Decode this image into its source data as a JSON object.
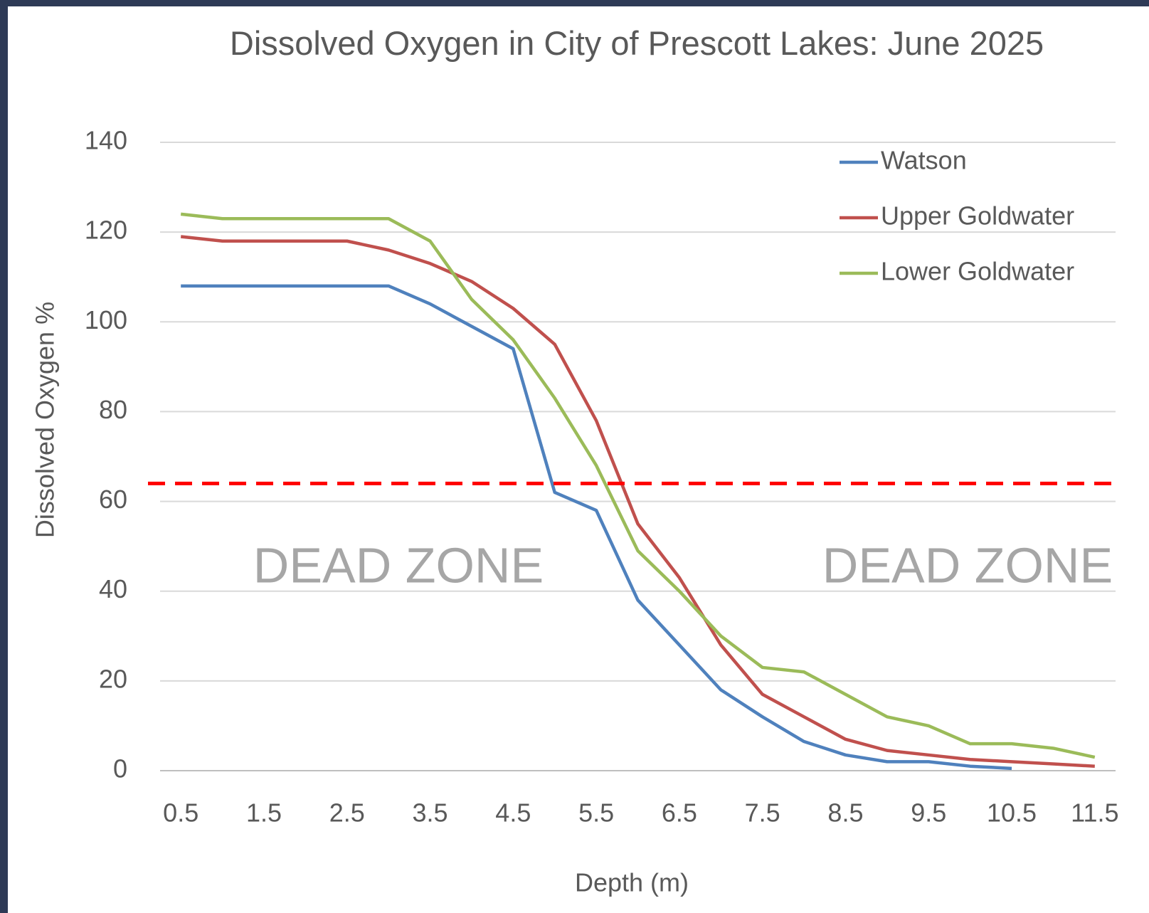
{
  "chart_data": {
    "type": "line",
    "title": "Dissolved Oxygen in City of Prescott Lakes: June 2025",
    "x_label": "Depth (m)",
    "y_label": "Dissolved Oxygen %",
    "x": [
      0.5,
      1,
      1.5,
      2,
      2.5,
      3,
      3.5,
      4,
      4.5,
      5,
      5.5,
      6,
      6.5,
      7,
      7.5,
      8,
      8.5,
      9,
      9.5,
      10,
      10.5,
      11,
      11.5
    ],
    "series": [
      {
        "name": "Watson",
        "color": "#4f81bd",
        "values": [
          108,
          108,
          108,
          108,
          108,
          108,
          104,
          99,
          94,
          62,
          58,
          38,
          28,
          18,
          12,
          6.5,
          3.5,
          2,
          2,
          1,
          0.5,
          null,
          null
        ]
      },
      {
        "name": "Upper Goldwater",
        "color": "#c0504d",
        "values": [
          119,
          118,
          118,
          118,
          118,
          116,
          113,
          109,
          103,
          95,
          78,
          55,
          43,
          28,
          17,
          12,
          7,
          4.5,
          3.5,
          2.5,
          2,
          1.5,
          1
        ]
      },
      {
        "name": "Lower Goldwater",
        "color": "#9bbb59",
        "values": [
          124,
          123,
          123,
          123,
          123,
          123,
          118,
          105,
          96,
          83,
          68,
          49,
          40,
          30,
          23,
          22,
          17,
          12,
          10,
          6,
          6,
          5,
          3
        ]
      }
    ],
    "threshold": {
      "value": 64,
      "color": "#ff0000"
    },
    "annotations": [
      "DEAD ZONE",
      "DEAD ZONE"
    ],
    "xlim": [
      0.25,
      11.75
    ],
    "xticks": [
      0.5,
      1.5,
      2.5,
      3.5,
      4.5,
      5.5,
      6.5,
      7.5,
      8.5,
      9.5,
      10.5,
      11.5
    ],
    "ylim": [
      0,
      140
    ],
    "yticks": [
      0,
      20,
      40,
      60,
      80,
      100,
      120,
      140
    ],
    "grid": true,
    "legend": "upper right"
  }
}
